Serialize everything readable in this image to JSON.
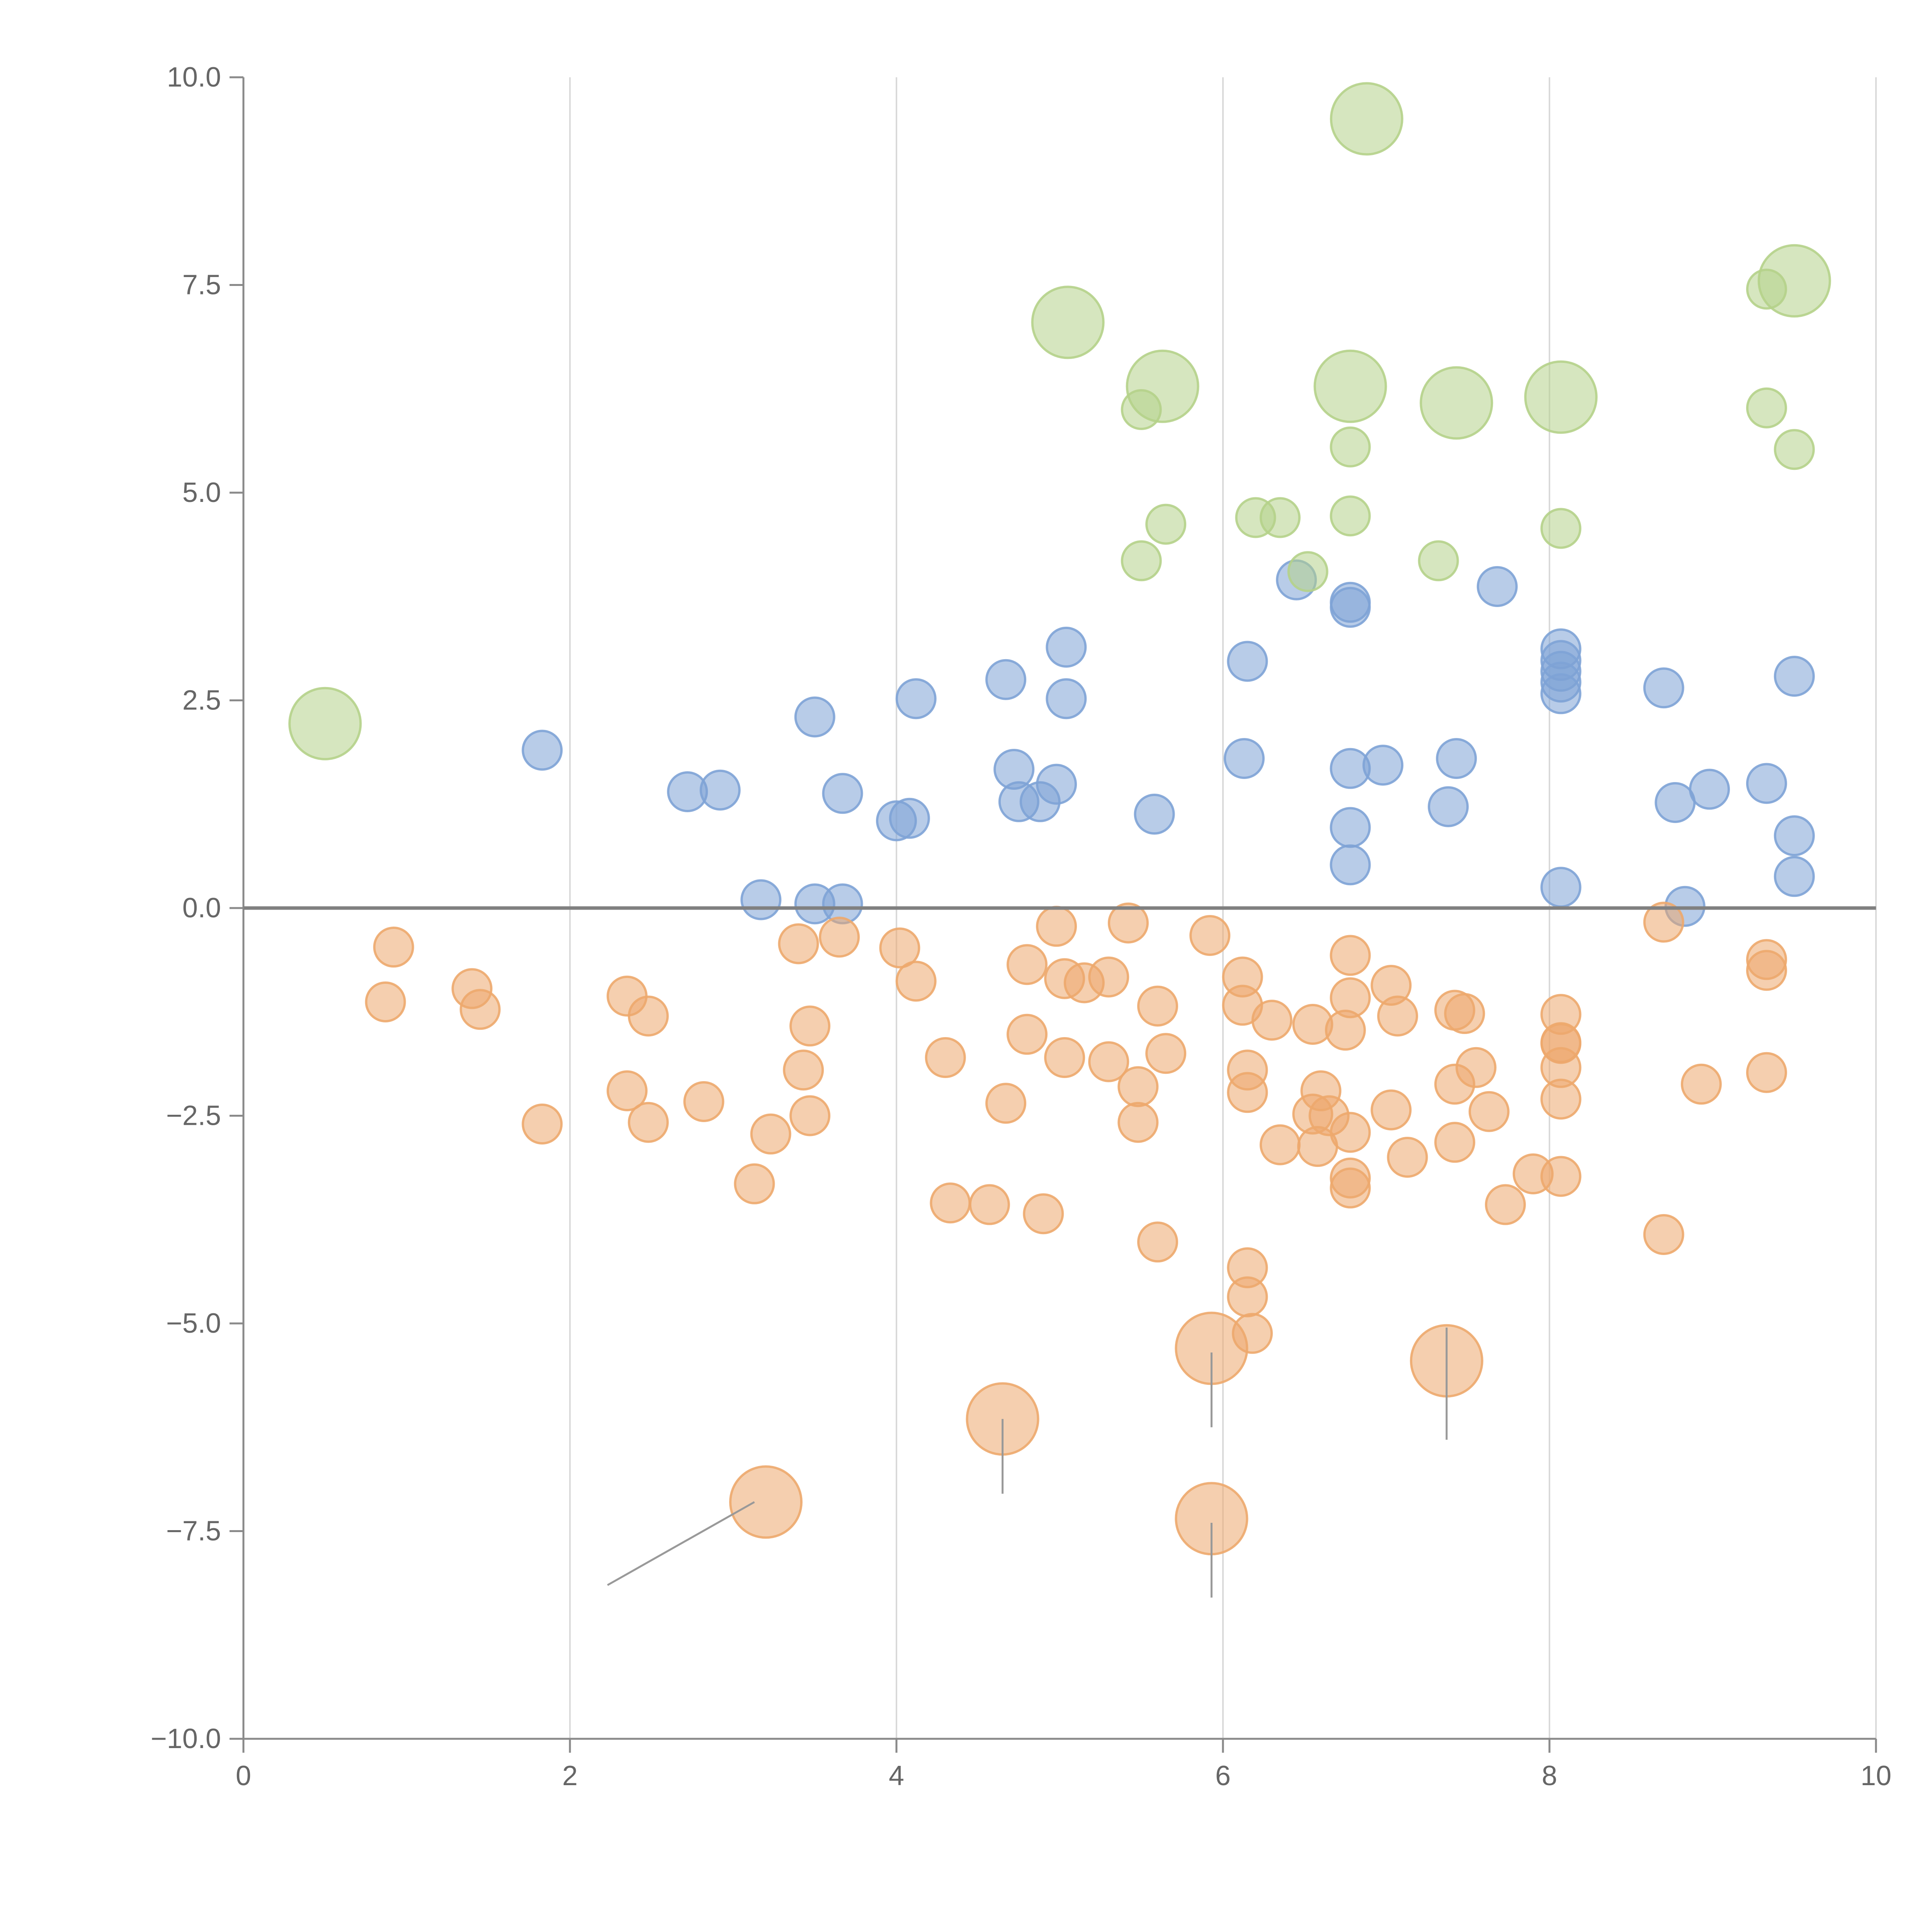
{
  "chart_data": {
    "type": "scatter",
    "title": "",
    "xlabel": "",
    "ylabel": "",
    "xlim": [
      0,
      10
    ],
    "ylim": [
      -10,
      10
    ],
    "xticks": [
      0,
      2,
      4,
      6,
      8,
      10
    ],
    "xtick_labels": [
      "0",
      "2",
      "4",
      "6",
      "8",
      "10"
    ],
    "yticks": [
      -10,
      -7.5,
      -5,
      -2.5,
      0,
      2.5,
      5,
      7.5,
      10
    ],
    "ytick_labels": [
      "−10.0",
      "−7.5",
      "−5.0",
      "−2.5",
      "0.0",
      "2.5",
      "5.0",
      "7.5",
      "10.0"
    ],
    "grid": "vertical",
    "baseline": 0,
    "colors": {
      "positive": "#7ea3d6",
      "negative": "#eda86d",
      "highlight": "#b5d28a",
      "grid": "#d9d9d9",
      "axis": "#8a8a8a",
      "baseline": "#808080",
      "leader": "#999999"
    },
    "series": [
      {
        "name": "positive",
        "color": "#7ea3d6",
        "points": [
          [
            1.83,
            1.9
          ],
          [
            2.72,
            1.4
          ],
          [
            2.92,
            1.42
          ],
          [
            3.5,
            2.3
          ],
          [
            3.17,
            0.1
          ],
          [
            3.5,
            0.05
          ],
          [
            3.67,
            0.05
          ],
          [
            3.67,
            1.38
          ],
          [
            4.0,
            1.05
          ],
          [
            4.08,
            1.08
          ],
          [
            4.12,
            2.52
          ],
          [
            4.67,
            2.75
          ],
          [
            4.72,
            1.67
          ],
          [
            4.75,
            1.28
          ],
          [
            4.88,
            1.28
          ],
          [
            4.98,
            1.49
          ],
          [
            5.04,
            3.14
          ],
          [
            5.04,
            2.52
          ],
          [
            5.58,
            1.13
          ],
          [
            6.13,
            1.8
          ],
          [
            6.15,
            2.97
          ],
          [
            6.45,
            3.95
          ],
          [
            6.78,
            3.68
          ],
          [
            6.78,
            3.62
          ],
          [
            6.78,
            1.68
          ],
          [
            6.78,
            0.97
          ],
          [
            6.78,
            0.52
          ],
          [
            6.98,
            1.72
          ],
          [
            7.38,
            1.22
          ],
          [
            7.43,
            1.8
          ],
          [
            7.68,
            3.87
          ],
          [
            8.07,
            3.12
          ],
          [
            8.07,
            2.98
          ],
          [
            8.07,
            2.85
          ],
          [
            8.07,
            2.72
          ],
          [
            8.07,
            2.58
          ],
          [
            8.07,
            0.25
          ],
          [
            8.7,
            2.65
          ],
          [
            8.77,
            1.27
          ],
          [
            8.83,
            0.02
          ],
          [
            8.98,
            1.43
          ],
          [
            9.33,
            1.5
          ],
          [
            9.5,
            2.79
          ],
          [
            9.5,
            0.87
          ],
          [
            9.5,
            0.38
          ]
        ]
      },
      {
        "name": "negative",
        "color": "#eda86d",
        "points": [
          [
            0.92,
            -0.47
          ],
          [
            0.87,
            -1.13
          ],
          [
            1.4,
            -0.97
          ],
          [
            1.45,
            -1.22
          ],
          [
            1.83,
            -2.6
          ],
          [
            2.35,
            -1.06
          ],
          [
            2.48,
            -1.3
          ],
          [
            2.35,
            -2.2
          ],
          [
            2.48,
            -2.58
          ],
          [
            2.82,
            -2.33
          ],
          [
            3.13,
            -3.32
          ],
          [
            3.23,
            -2.72
          ],
          [
            3.4,
            -0.43
          ],
          [
            3.43,
            -1.95
          ],
          [
            3.47,
            -1.42
          ],
          [
            3.47,
            -2.5
          ],
          [
            3.65,
            -0.35
          ],
          [
            4.02,
            -0.48
          ],
          [
            4.12,
            -0.88
          ],
          [
            4.3,
            -1.8
          ],
          [
            4.33,
            -3.55
          ],
          [
            4.57,
            -3.57
          ],
          [
            4.67,
            -2.35
          ],
          [
            4.8,
            -0.68
          ],
          [
            4.8,
            -1.52
          ],
          [
            4.9,
            -3.68
          ],
          [
            4.98,
            -0.22
          ],
          [
            5.03,
            -0.85
          ],
          [
            5.03,
            -1.8
          ],
          [
            5.15,
            -0.9
          ],
          [
            5.3,
            -0.83
          ],
          [
            5.3,
            -1.85
          ],
          [
            5.42,
            -0.18
          ],
          [
            5.48,
            -2.15
          ],
          [
            5.48,
            -2.58
          ],
          [
            5.6,
            -1.18
          ],
          [
            5.6,
            -4.02
          ],
          [
            5.65,
            -1.75
          ],
          [
            5.92,
            -0.33
          ],
          [
            6.12,
            -0.83
          ],
          [
            6.12,
            -1.17
          ],
          [
            6.15,
            -1.95
          ],
          [
            6.15,
            -2.22
          ],
          [
            6.15,
            -4.33
          ],
          [
            6.15,
            -4.68
          ],
          [
            6.18,
            -5.12
          ],
          [
            6.3,
            -1.35
          ],
          [
            6.35,
            -2.85
          ],
          [
            6.55,
            -1.4
          ],
          [
            6.55,
            -2.48
          ],
          [
            6.58,
            -2.87
          ],
          [
            6.6,
            -2.2
          ],
          [
            6.65,
            -2.5
          ],
          [
            6.75,
            -1.47
          ],
          [
            6.78,
            -0.57
          ],
          [
            6.78,
            -1.08
          ],
          [
            6.78,
            -2.7
          ],
          [
            6.78,
            -3.25
          ],
          [
            6.78,
            -3.37
          ],
          [
            7.03,
            -0.93
          ],
          [
            7.03,
            -2.43
          ],
          [
            7.07,
            -1.3
          ],
          [
            7.13,
            -3.0
          ],
          [
            7.42,
            -1.23
          ],
          [
            7.42,
            -2.12
          ],
          [
            7.42,
            -2.82
          ],
          [
            7.48,
            -1.27
          ],
          [
            7.55,
            -1.92
          ],
          [
            7.63,
            -2.45
          ],
          [
            7.73,
            -3.57
          ],
          [
            7.9,
            -3.2
          ],
          [
            8.07,
            -1.28
          ],
          [
            8.07,
            -1.62
          ],
          [
            8.07,
            -1.63
          ],
          [
            8.07,
            -1.92
          ],
          [
            8.07,
            -2.3
          ],
          [
            8.07,
            -3.23
          ],
          [
            8.7,
            -0.17
          ],
          [
            8.7,
            -3.93
          ],
          [
            8.93,
            -2.12
          ],
          [
            9.33,
            -0.62
          ],
          [
            9.33,
            -0.75
          ],
          [
            9.33,
            -1.98
          ]
        ]
      },
      {
        "name": "highlight",
        "color": "#b5d28a",
        "points": [
          [
            5.5,
            6.0
          ],
          [
            5.65,
            4.62
          ],
          [
            5.5,
            4.18
          ],
          [
            6.2,
            4.7
          ],
          [
            6.35,
            4.7
          ],
          [
            6.52,
            4.05
          ],
          [
            6.78,
            5.55
          ],
          [
            6.78,
            4.72
          ],
          [
            7.32,
            4.18
          ],
          [
            8.07,
            4.57
          ],
          [
            9.33,
            7.45
          ],
          [
            9.33,
            6.02
          ],
          [
            9.5,
            5.52
          ]
        ]
      }
    ],
    "large_points": [
      {
        "x": 0.5,
        "y": 2.22,
        "series": "highlight"
      },
      {
        "x": 6.88,
        "y": 9.5,
        "series": "highlight"
      },
      {
        "x": 9.5,
        "y": 7.55,
        "series": "highlight"
      },
      {
        "x": 5.05,
        "y": 7.05,
        "series": "highlight"
      },
      {
        "x": 5.63,
        "y": 6.28,
        "series": "highlight"
      },
      {
        "x": 6.78,
        "y": 6.28,
        "series": "highlight"
      },
      {
        "x": 7.43,
        "y": 6.08,
        "series": "highlight"
      },
      {
        "x": 8.07,
        "y": 6.15,
        "series": "highlight"
      },
      {
        "x": 5.93,
        "y": -5.3,
        "series": "negative"
      },
      {
        "x": 7.37,
        "y": -5.45,
        "series": "negative"
      },
      {
        "x": 4.65,
        "y": -6.15,
        "series": "negative"
      },
      {
        "x": 3.2,
        "y": -7.15,
        "series": "negative"
      },
      {
        "x": 5.93,
        "y": -7.35,
        "series": "negative"
      }
    ],
    "leader_lines": [
      {
        "x1": 5.93,
        "y1": -5.35,
        "x2": 5.93,
        "y2": -6.25
      },
      {
        "x1": 7.37,
        "y1": -5.05,
        "x2": 7.37,
        "y2": -6.4
      },
      {
        "x1": 4.65,
        "y1": -6.15,
        "x2": 4.65,
        "y2": -7.05
      },
      {
        "x1": 3.13,
        "y1": -7.15,
        "x2": 2.23,
        "y2": -8.15
      },
      {
        "x1": 5.93,
        "y1": -7.4,
        "x2": 5.93,
        "y2": -8.3
      }
    ]
  }
}
